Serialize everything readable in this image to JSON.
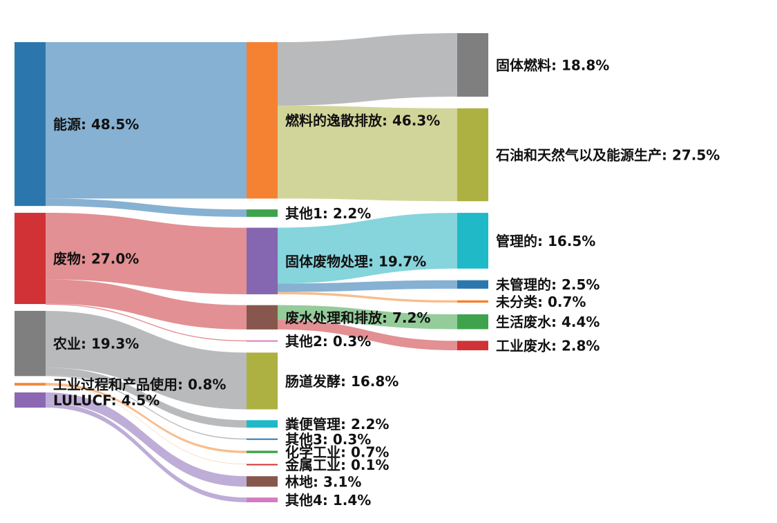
{
  "chart_data": {
    "type": "sankey",
    "nodes": [
      {
        "label": "能源: 48.5%",
        "value": 48.5,
        "color": "#2b77ad"
      },
      {
        "label": "废物: 27.0%",
        "value": 27,
        "color": "#d03236"
      },
      {
        "label": "农业: 19.3%",
        "value": 19.3,
        "color": "#7f7f80"
      },
      {
        "label": "工业过程和产品使用: 0.8%",
        "value": 0.8,
        "color": "#f0883e"
      },
      {
        "label": "LULUCF: 4.5%",
        "value": 4.5,
        "color": "#8c68b3"
      },
      {
        "label": "燃料的逸散排放: 46.3%",
        "value": 46.3,
        "color": "#f58232"
      },
      {
        "label": "其他1: 2.2%",
        "value": 2.2,
        "color": "#3fa34d"
      },
      {
        "label": "固体废物处理: 19.7%",
        "value": 19.7,
        "color": "#8566b0"
      },
      {
        "label": "废水处理和排放: 7.2%",
        "value": 7.2,
        "color": "#87574d"
      },
      {
        "label": "其他2: 0.3%",
        "value": 0.3,
        "color": "#d47cbf"
      },
      {
        "label": "肠道发酵: 16.8%",
        "value": 16.8,
        "color": "#adb141"
      },
      {
        "label": "粪便管理: 2.2%",
        "value": 2.2,
        "color": "#1fb9c8"
      },
      {
        "label": "其他3: 0.3%",
        "value": 0.3,
        "color": "#2b77ad"
      },
      {
        "label": "化学工业: 0.7%",
        "value": 0.7,
        "color": "#3fa34d"
      },
      {
        "label": "金属工业: 0.1%",
        "value": 0.1,
        "color": "#d03236"
      },
      {
        "label": "林地: 3.1%",
        "value": 3.1,
        "color": "#87574d"
      },
      {
        "label": "其他4: 1.4%",
        "value": 1.4,
        "color": "#d47cbf"
      },
      {
        "label": "固体燃料: 18.8%",
        "value": 18.8,
        "color": "#7f7f80"
      },
      {
        "label": "石油和天然气以及能源生产: 27.5%",
        "value": 27.5,
        "color": "#adb141"
      },
      {
        "label": "管理的: 16.5%",
        "value": 16.5,
        "color": "#1fb9c8"
      },
      {
        "label": "未管理的: 2.5%",
        "value": 2.5,
        "color": "#2b77ad"
      },
      {
        "label": "未分类: 0.7%",
        "value": 0.7,
        "color": "#f58232"
      },
      {
        "label": "生活废水: 4.4%",
        "value": 4.4,
        "color": "#3fa34d"
      },
      {
        "label": "工业废水: 2.8%",
        "value": 2.8,
        "color": "#d03236"
      }
    ],
    "links": [
      {
        "source": 0,
        "target": 5,
        "value": 46.3,
        "color": "#7fadd0"
      },
      {
        "source": 0,
        "target": 6,
        "value": 2.2,
        "color": "#7fadd0"
      },
      {
        "source": 1,
        "target": 7,
        "value": 19.7,
        "color": "#e08a8d"
      },
      {
        "source": 1,
        "target": 8,
        "value": 7.2,
        "color": "#e08a8d"
      },
      {
        "source": 1,
        "target": 9,
        "value": 0.3,
        "color": "#e08a8d"
      },
      {
        "source": 2,
        "target": 10,
        "value": 16.8,
        "color": "#b5b6b8"
      },
      {
        "source": 2,
        "target": 11,
        "value": 2.2,
        "color": "#b5b6b8"
      },
      {
        "source": 2,
        "target": 12,
        "value": 0.3,
        "color": "#b5b6b8"
      },
      {
        "source": 3,
        "target": 13,
        "value": 0.7,
        "color": "#f8b987"
      },
      {
        "source": 3,
        "target": 14,
        "value": 0.1,
        "color": "#f8b987"
      },
      {
        "source": 4,
        "target": 15,
        "value": 3.1,
        "color": "#bba9d5"
      },
      {
        "source": 4,
        "target": 16,
        "value": 1.4,
        "color": "#bba9d5"
      },
      {
        "source": 5,
        "target": 17,
        "value": 18.8,
        "color": "#b5b6b8"
      },
      {
        "source": 5,
        "target": 18,
        "value": 27.5,
        "color": "#d0d394"
      },
      {
        "source": 7,
        "target": 19,
        "value": 16.5,
        "color": "#80d2da"
      },
      {
        "source": 7,
        "target": 20,
        "value": 2.5,
        "color": "#7fadd0"
      },
      {
        "source": 7,
        "target": 21,
        "value": 0.7,
        "color": "#f8b987"
      },
      {
        "source": 8,
        "target": 22,
        "value": 4.4,
        "color": "#8ec995"
      },
      {
        "source": 8,
        "target": 23,
        "value": 2.8,
        "color": "#e08a8d"
      }
    ]
  }
}
